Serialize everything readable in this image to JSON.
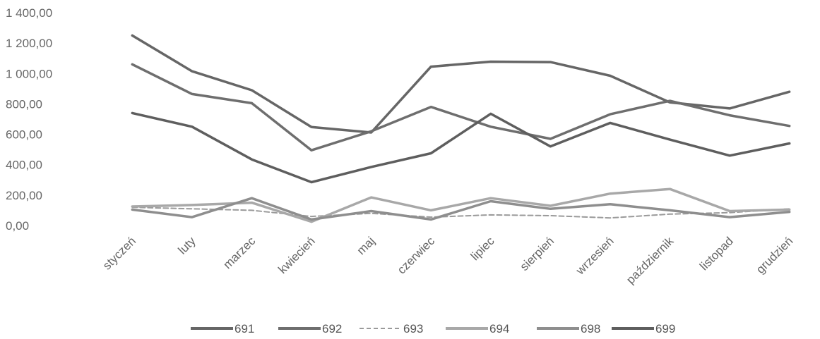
{
  "chart_data": {
    "type": "line",
    "categories": [
      "styczeń",
      "luty",
      "marzec",
      "kwiecień",
      "maj",
      "czerwiec",
      "lipiec",
      "sierpień",
      "wrzesień",
      "październik",
      "listopad",
      "grudzień"
    ],
    "ylim": [
      0,
      1400
    ],
    "yticks": [
      "0,00",
      "200,00",
      "400,00",
      "600,00",
      "800,00",
      "1 000,00",
      "1 200,00",
      "1 400,00"
    ],
    "grid": false,
    "legend": "bottom",
    "series": [
      {
        "name": "691",
        "color": "#666666",
        "values": [
          1250,
          1015,
          890,
          648,
          612,
          1045,
          1078,
          1075,
          985,
          810,
          770,
          880
        ]
      },
      {
        "name": "692",
        "color": "#6e6e6e",
        "values": [
          1060,
          865,
          805,
          495,
          620,
          780,
          650,
          570,
          732,
          820,
          725,
          655
        ]
      },
      {
        "name": "693",
        "color": "#9a9a9a",
        "values": [
          120,
          110,
          100,
          60,
          80,
          55,
          70,
          65,
          50,
          75,
          85,
          110
        ]
      },
      {
        "name": "694",
        "color": "#a8a8a8",
        "values": [
          125,
          135,
          150,
          25,
          185,
          100,
          180,
          130,
          210,
          240,
          95,
          105
        ]
      },
      {
        "name": "698",
        "color": "#8e8e8e",
        "values": [
          105,
          55,
          180,
          40,
          95,
          40,
          160,
          110,
          140,
          100,
          55,
          90
        ]
      },
      {
        "name": "699",
        "color": "#5e5e5e",
        "values": [
          740,
          650,
          435,
          285,
          385,
          475,
          735,
          520,
          675,
          565,
          460,
          540
        ]
      }
    ]
  }
}
